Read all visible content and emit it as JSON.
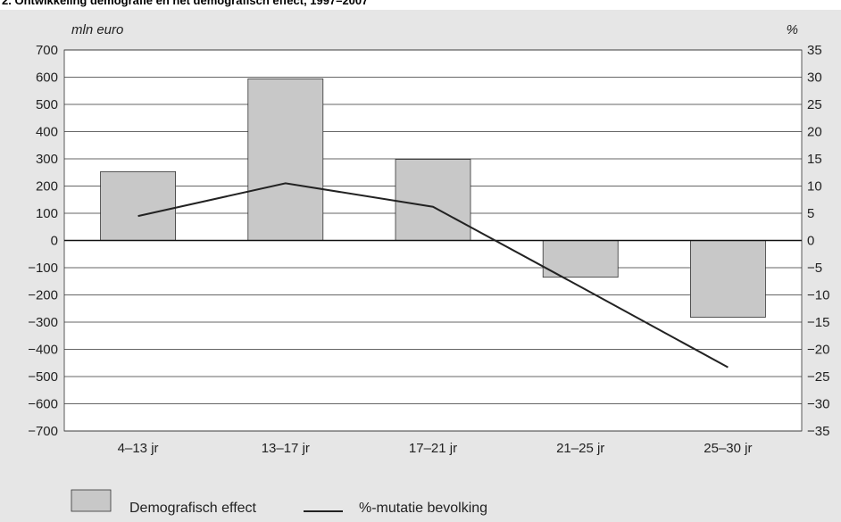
{
  "title": "2. Ontwikkeling demografie en het demografisch effect, 1997–2007",
  "chart_data": {
    "type": "bar",
    "categories": [
      "4–13 jr",
      "13–17 jr",
      "17–21 jr",
      "21–25 jr",
      "25–30 jr"
    ],
    "series": [
      {
        "name": "Demografisch effect",
        "type": "bar",
        "axis": "left",
        "color": "#c8c8c8",
        "values": [
          253,
          594,
          298,
          -135,
          -282
        ]
      },
      {
        "name": "%-mutatie bevolking",
        "type": "line",
        "axis": "right",
        "color": "#222222",
        "values": [
          4.5,
          10.5,
          6.2,
          -8.5,
          -23.3
        ]
      }
    ],
    "ylabel": "mln euro",
    "y2label": "%",
    "ylim": [
      -700,
      700
    ],
    "y2lim": [
      -35,
      35
    ],
    "yticks": [
      "700",
      "600",
      "500",
      "400",
      "300",
      "200",
      "100",
      "0",
      "−100",
      "−200",
      "−300",
      "−400",
      "−500",
      "−600",
      "−700"
    ],
    "y2ticks": [
      "35",
      "30",
      "25",
      "20",
      "15",
      "10",
      "5",
      "0",
      "−5",
      "−10",
      "−15",
      "−20",
      "−25",
      "−30",
      "−35"
    ],
    "grid": true,
    "legend_position": "bottom-left"
  }
}
